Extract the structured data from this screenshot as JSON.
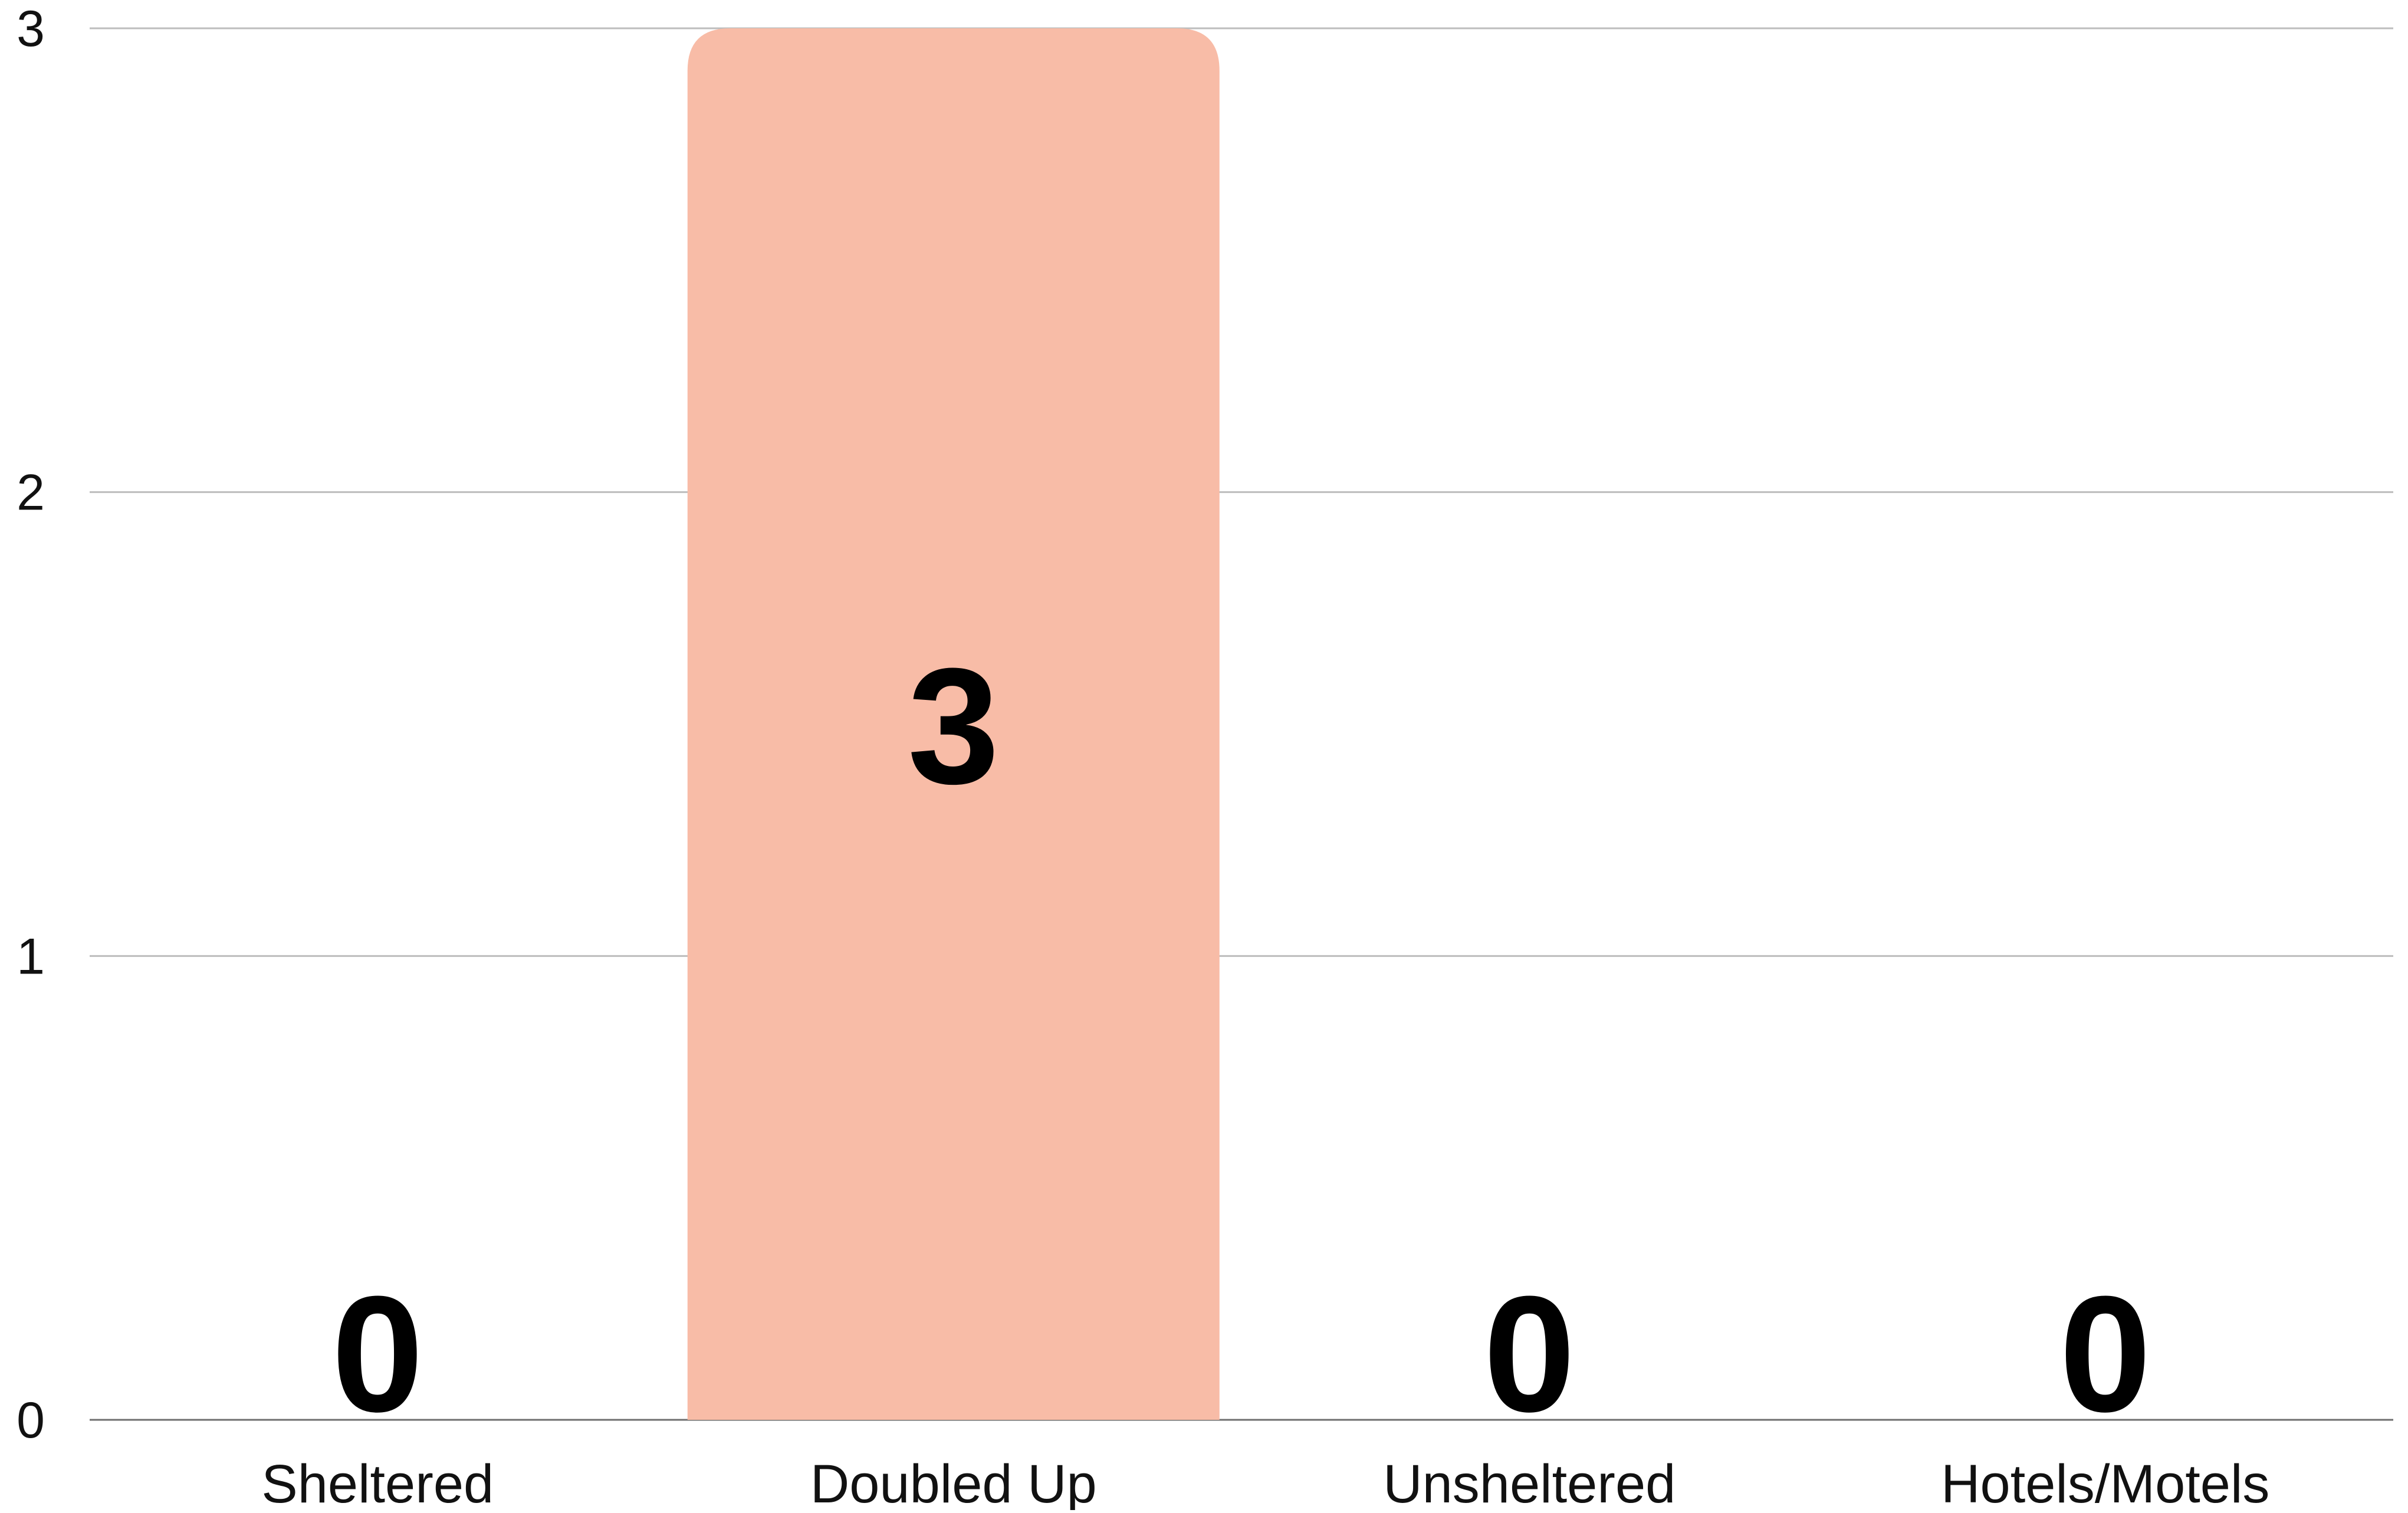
{
  "chart_data": {
    "type": "bar",
    "categories": [
      "Sheltered",
      "Doubled Up",
      "Unsheltered",
      "Hotels/Motels"
    ],
    "values": [
      0,
      3,
      0,
      0
    ],
    "data_labels": [
      "0",
      "3",
      "0",
      "0"
    ],
    "y_ticks": [
      "0",
      "1",
      "2",
      "3"
    ],
    "ylim": [
      0,
      3
    ],
    "grid": true,
    "legend": "none",
    "bar_color": "#F8BCA7",
    "grid_color": "#BDBDBD",
    "text_color": "#111111"
  }
}
